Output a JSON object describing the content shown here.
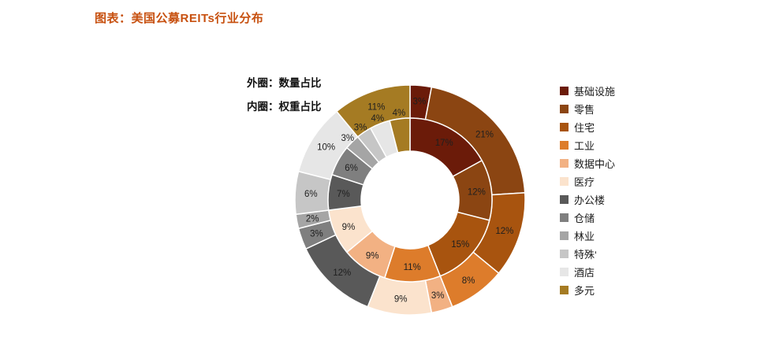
{
  "title": "图表：美国公募REITs行业分布",
  "title_color": "#C7500F",
  "annotations": {
    "outer_ring": "外圈：数量占比",
    "inner_ring": "内圈：权重占比"
  },
  "chart_data": {
    "type": "pie",
    "variant": "double-ring-donut",
    "title": "图表：美国公募REITs行业分布",
    "categories": [
      "基础设施",
      "零售",
      "住宅",
      "工业",
      "数据中心",
      "医疗",
      "办公楼",
      "仓储",
      "林业",
      "特殊‘",
      "酒店",
      "多元"
    ],
    "category_keys": [
      "infrastructure",
      "retail",
      "residential",
      "industrial",
      "data-center",
      "healthcare",
      "office",
      "self-storage",
      "timber",
      "specialty",
      "hotel",
      "diversified"
    ],
    "colors": [
      "#6B1B09",
      "#8B4512",
      "#A8540F",
      "#DD7C2B",
      "#F2B183",
      "#FBE3CD",
      "#595959",
      "#7F7F7F",
      "#A5A5A5",
      "#C6C6C6",
      "#E6E6E6",
      "#A57B23"
    ],
    "series": [
      {
        "name": "外圈：数量占比",
        "ring": "outer",
        "unit": "%",
        "values": [
          3,
          21,
          12,
          8,
          3,
          9,
          12,
          3,
          2,
          6,
          10,
          11
        ]
      },
      {
        "name": "内圈：权重占比",
        "ring": "inner",
        "unit": "%",
        "values": [
          17,
          12,
          15,
          11,
          9,
          9,
          7,
          6,
          3,
          3,
          4,
          4
        ]
      }
    ],
    "label_format": "{value}%",
    "legend_position": "right",
    "start_angle_deg": 0,
    "direction": "clockwise"
  }
}
